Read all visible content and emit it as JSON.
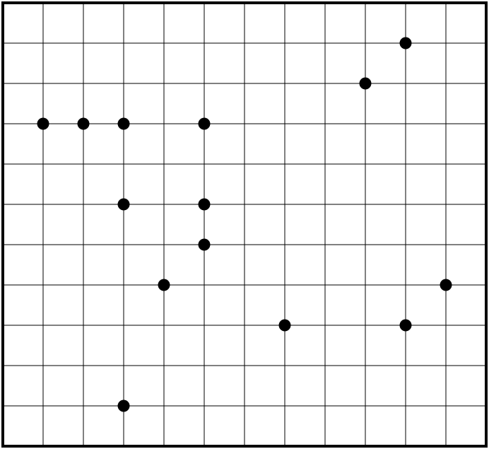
{
  "grid": {
    "columns": 12,
    "rows": 11,
    "line_color": "#000000",
    "background": "#ffffff"
  },
  "points": {
    "color": "#000000",
    "items": [
      {
        "col": 10,
        "row": 1
      },
      {
        "col": 9,
        "row": 2
      },
      {
        "col": 1,
        "row": 3
      },
      {
        "col": 2,
        "row": 3
      },
      {
        "col": 3,
        "row": 3
      },
      {
        "col": 5,
        "row": 3
      },
      {
        "col": 3,
        "row": 5
      },
      {
        "col": 5,
        "row": 5
      },
      {
        "col": 5,
        "row": 6
      },
      {
        "col": 4,
        "row": 7
      },
      {
        "col": 11,
        "row": 7
      },
      {
        "col": 7,
        "row": 8
      },
      {
        "col": 10,
        "row": 8
      },
      {
        "col": 3,
        "row": 10
      }
    ]
  }
}
